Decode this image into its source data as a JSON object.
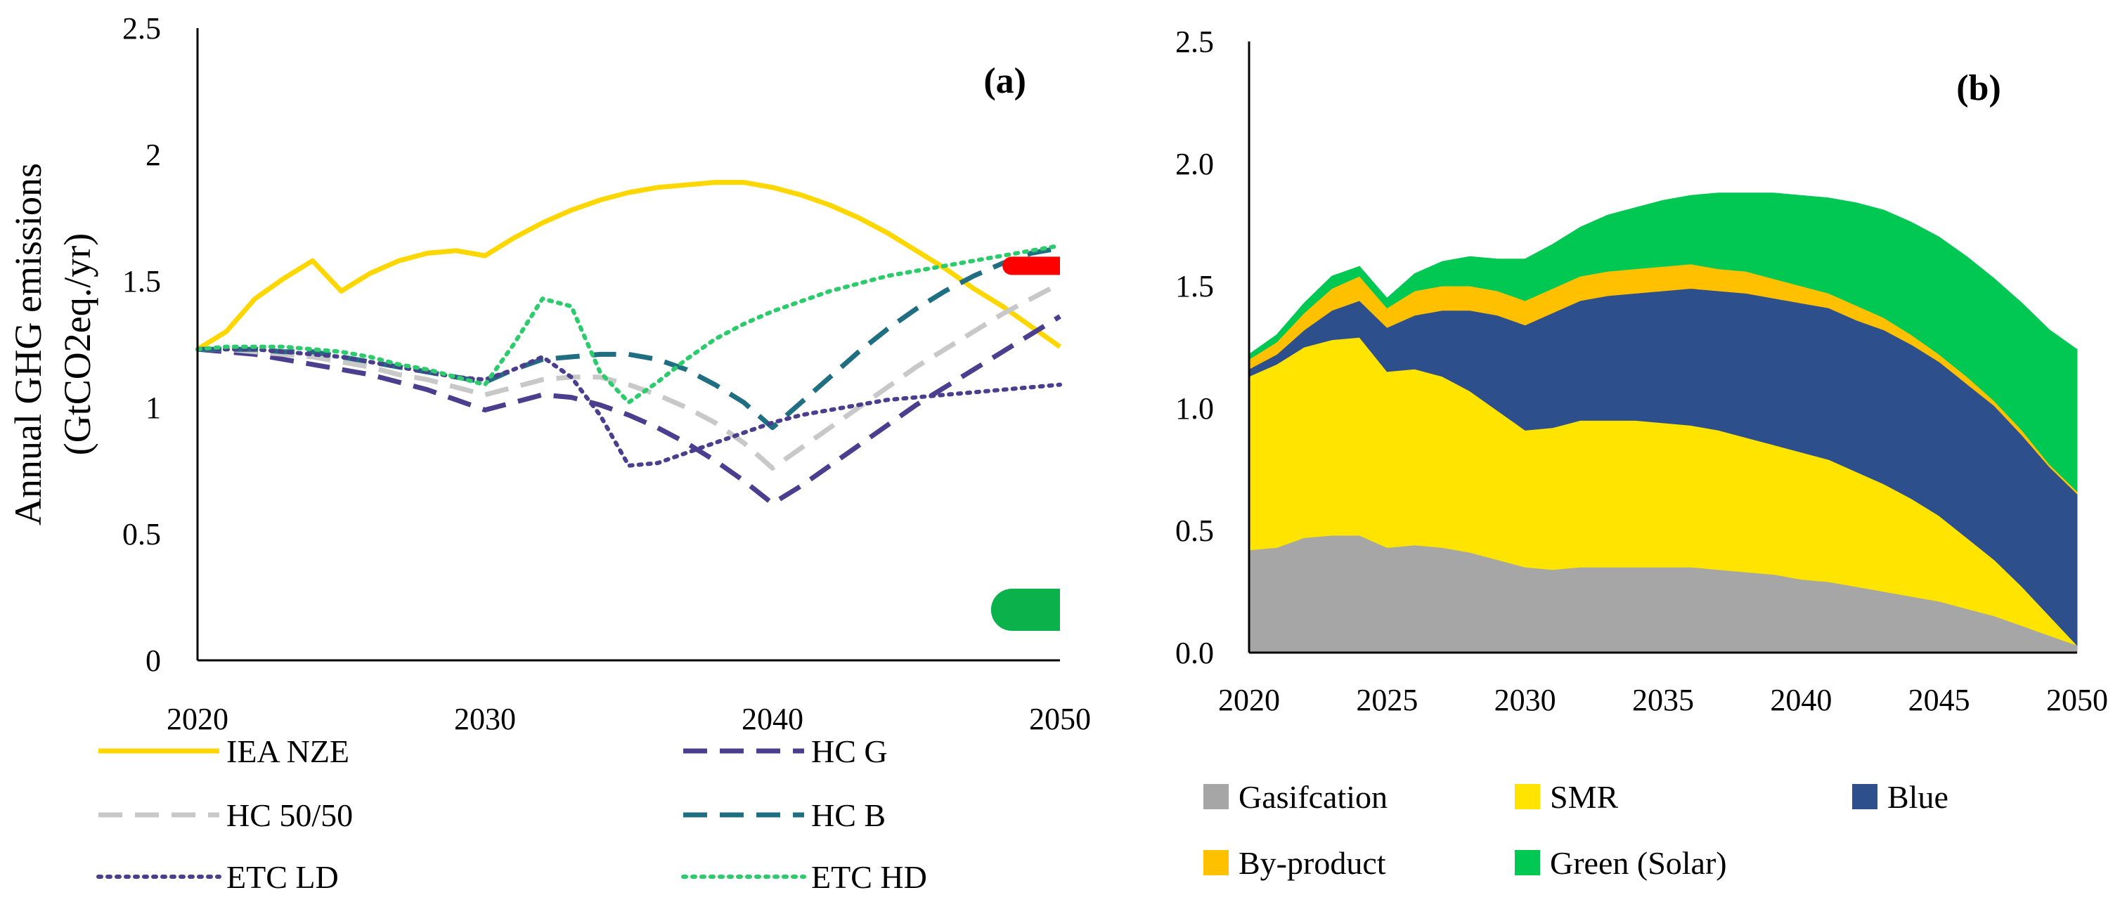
{
  "chart_data": [
    {
      "id": "a",
      "type": "line",
      "panel_label": "(a)",
      "ylabel_line1": "Annual GHG emissions",
      "ylabel_line2": "(GtCO2eq./yr)",
      "xlim": [
        2020,
        2050
      ],
      "ylim": [
        0,
        2.5
      ],
      "xticks": [
        "2020",
        "2030",
        "2040",
        "2050"
      ],
      "yticks": [
        "0",
        "0.5",
        "1",
        "1.5",
        "2",
        "2.5"
      ],
      "x": [
        2020,
        2021,
        2022,
        2023,
        2024,
        2025,
        2026,
        2027,
        2028,
        2029,
        2030,
        2031,
        2032,
        2033,
        2034,
        2035,
        2036,
        2037,
        2038,
        2039,
        2040,
        2041,
        2042,
        2043,
        2044,
        2045,
        2046,
        2047,
        2048,
        2049,
        2050
      ],
      "series": [
        {
          "name": "IEA NZE",
          "color": "#FFD700",
          "style": "solid",
          "values": [
            1.23,
            1.3,
            1.43,
            1.51,
            1.58,
            1.46,
            1.53,
            1.58,
            1.61,
            1.62,
            1.6,
            1.67,
            1.73,
            1.78,
            1.82,
            1.85,
            1.87,
            1.88,
            1.89,
            1.89,
            1.87,
            1.84,
            1.8,
            1.75,
            1.69,
            1.62,
            1.55,
            1.47,
            1.4,
            1.32,
            1.24
          ]
        },
        {
          "name": "HC G",
          "color": "#4B3E8E",
          "style": "dash",
          "values": [
            1.23,
            1.22,
            1.21,
            1.19,
            1.17,
            1.15,
            1.13,
            1.1,
            1.07,
            1.03,
            0.99,
            1.02,
            1.05,
            1.04,
            1.01,
            0.97,
            0.92,
            0.86,
            0.79,
            0.71,
            0.62,
            0.69,
            0.77,
            0.85,
            0.93,
            1.01,
            1.08,
            1.15,
            1.22,
            1.29,
            1.36
          ]
        },
        {
          "name": "HC 50/50",
          "color": "#C8C8C8",
          "style": "dash",
          "values": [
            1.23,
            1.23,
            1.22,
            1.21,
            1.2,
            1.18,
            1.16,
            1.13,
            1.11,
            1.08,
            1.05,
            1.08,
            1.11,
            1.12,
            1.12,
            1.09,
            1.05,
            1,
            0.94,
            0.86,
            0.76,
            0.84,
            0.92,
            1,
            1.08,
            1.16,
            1.23,
            1.3,
            1.37,
            1.43,
            1.49
          ]
        },
        {
          "name": "HC B",
          "color": "#1F6E82",
          "style": "dash",
          "values": [
            1.23,
            1.23,
            1.23,
            1.22,
            1.22,
            1.2,
            1.18,
            1.16,
            1.14,
            1.12,
            1.1,
            1.15,
            1.19,
            1.2,
            1.21,
            1.21,
            1.19,
            1.15,
            1.09,
            1.02,
            0.92,
            1.02,
            1.12,
            1.22,
            1.31,
            1.39,
            1.46,
            1.52,
            1.57,
            1.61,
            1.63
          ]
        },
        {
          "name": "ETC LD",
          "color": "#4B3E8E",
          "style": "dot",
          "values": [
            1.23,
            1.23,
            1.23,
            1.22,
            1.21,
            1.2,
            1.18,
            1.16,
            1.14,
            1.12,
            1.11,
            1.15,
            1.2,
            1.12,
            0.97,
            0.77,
            0.78,
            0.82,
            0.86,
            0.9,
            0.94,
            0.97,
            0.99,
            1.01,
            1.03,
            1.04,
            1.05,
            1.06,
            1.07,
            1.08,
            1.09
          ]
        },
        {
          "name": "ETC HD",
          "color": "#2CCB6C",
          "style": "dot",
          "values": [
            1.23,
            1.24,
            1.24,
            1.24,
            1.23,
            1.22,
            1.2,
            1.17,
            1.15,
            1.12,
            1.09,
            1.25,
            1.43,
            1.4,
            1.14,
            1.02,
            1.1,
            1.19,
            1.27,
            1.33,
            1.38,
            1.42,
            1.46,
            1.49,
            1.52,
            1.54,
            1.56,
            1.58,
            1.6,
            1.62,
            1.64
          ]
        }
      ],
      "markers": [
        {
          "x_from": 2048,
          "x_to": 2050,
          "value": 1.56,
          "color": "#FF0000"
        },
        {
          "x_from": 2047.6,
          "x_to": 2050,
          "value": 0.2,
          "color": "#0BB24B"
        }
      ]
    },
    {
      "id": "b",
      "type": "area",
      "panel_label": "(b)",
      "xlim": [
        2020,
        2050
      ],
      "ylim": [
        0,
        2.5
      ],
      "xticks": [
        "2020",
        "2025",
        "2030",
        "2035",
        "2040",
        "2045",
        "2050"
      ],
      "yticks": [
        "0.0",
        "0.5",
        "1.0",
        "1.5",
        "2.0",
        "2.5"
      ],
      "x": [
        2020,
        2021,
        2022,
        2023,
        2024,
        2025,
        2026,
        2027,
        2028,
        2029,
        2030,
        2031,
        2032,
        2033,
        2034,
        2035,
        2036,
        2037,
        2038,
        2039,
        2040,
        2041,
        2042,
        2043,
        2044,
        2045,
        2046,
        2047,
        2048,
        2049,
        2050
      ],
      "series": [
        {
          "name": "Gasifcation",
          "color": "#A6A6A6",
          "values": [
            0.42,
            0.43,
            0.47,
            0.48,
            0.48,
            0.43,
            0.44,
            0.43,
            0.41,
            0.38,
            0.35,
            0.34,
            0.35,
            0.35,
            0.35,
            0.35,
            0.35,
            0.34,
            0.33,
            0.32,
            0.3,
            0.29,
            0.27,
            0.25,
            0.23,
            0.21,
            0.18,
            0.15,
            0.11,
            0.07,
            0.03
          ]
        },
        {
          "name": "SMR",
          "color": "#FFE400",
          "values": [
            0.71,
            0.75,
            0.78,
            0.8,
            0.81,
            0.72,
            0.72,
            0.7,
            0.66,
            0.61,
            0.56,
            0.58,
            0.6,
            0.6,
            0.6,
            0.59,
            0.58,
            0.57,
            0.55,
            0.53,
            0.52,
            0.5,
            0.47,
            0.44,
            0.4,
            0.35,
            0.29,
            0.23,
            0.16,
            0.08,
            0
          ]
        },
        {
          "name": "Blue",
          "color": "#2D4F8C",
          "values": [
            0.03,
            0.04,
            0.07,
            0.12,
            0.15,
            0.18,
            0.22,
            0.27,
            0.33,
            0.39,
            0.43,
            0.47,
            0.49,
            0.51,
            0.52,
            0.54,
            0.56,
            0.57,
            0.59,
            0.6,
            0.61,
            0.62,
            0.62,
            0.63,
            0.63,
            0.63,
            0.63,
            0.63,
            0.62,
            0.61,
            0.62
          ]
        },
        {
          "name": "By-product",
          "color": "#FFC000",
          "values": [
            0.04,
            0.05,
            0.07,
            0.09,
            0.1,
            0.08,
            0.1,
            0.1,
            0.1,
            0.1,
            0.1,
            0.1,
            0.1,
            0.1,
            0.1,
            0.1,
            0.1,
            0.09,
            0.09,
            0.08,
            0.07,
            0.06,
            0.06,
            0.05,
            0.04,
            0.03,
            0.03,
            0.02,
            0.02,
            0.01,
            0.01
          ]
        },
        {
          "name": "Green (Solar)",
          "color": "#00C853",
          "values": [
            0.02,
            0.03,
            0.04,
            0.05,
            0.04,
            0.04,
            0.07,
            0.1,
            0.12,
            0.13,
            0.17,
            0.18,
            0.2,
            0.23,
            0.25,
            0.27,
            0.28,
            0.31,
            0.32,
            0.35,
            0.37,
            0.39,
            0.42,
            0.44,
            0.46,
            0.48,
            0.49,
            0.5,
            0.52,
            0.55,
            0.58
          ]
        }
      ]
    }
  ]
}
